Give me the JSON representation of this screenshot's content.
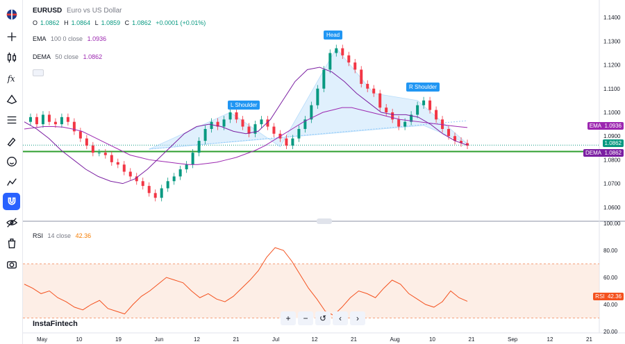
{
  "symbol": {
    "ticker": "EURUSD",
    "description": "Euro vs US Dollar",
    "ohlc": {
      "o_label": "O",
      "o": "1.0862",
      "h_label": "H",
      "h": "1.0864",
      "l_label": "L",
      "l": "1.0859",
      "c_label": "C",
      "c": "1.0862",
      "change": "+0.0001 (+0.01%)"
    }
  },
  "indicators": {
    "ema": {
      "name": "EMA",
      "params": "100 0 close",
      "value": "1.0936",
      "color": "#9c27b0"
    },
    "dema": {
      "name": "DEMA",
      "params": "50 close",
      "value": "1.0862",
      "color": "#7b1fa2"
    },
    "rsi": {
      "name": "RSI",
      "params": "14 close",
      "value": "42.36",
      "color": "#f57c00"
    }
  },
  "price_axis": {
    "ticks": [
      "1.1400",
      "1.1300",
      "1.1200",
      "1.1100",
      "1.1000",
      "1.0900",
      "1.0800",
      "1.0700",
      "1.0600"
    ],
    "tags": {
      "ema": {
        "label": "EMA",
        "value": "1.0936",
        "color": "#9c27b0"
      },
      "last": {
        "value": "1.0862",
        "color": "#089981"
      },
      "dema": {
        "label": "DEMA",
        "value": "1.0862",
        "color": "#7b1fa2"
      }
    }
  },
  "rsi_axis": {
    "ticks": [
      "100.00",
      "80.00",
      "60.00",
      "40.00",
      "20.00"
    ],
    "tag": {
      "label": "RSI",
      "value": "42.36",
      "color": "#f4511e"
    }
  },
  "time_axis": [
    "May",
    "10",
    "19",
    "Jun",
    "12",
    "21",
    "Jul",
    "12",
    "21",
    "Aug",
    "10",
    "21",
    "Sep",
    "12",
    "21"
  ],
  "pattern_labels": {
    "left_shoulder": "L Shoulder",
    "head": "Head",
    "right_shoulder": "R Shoulder"
  },
  "watermark": "InstaFintech",
  "nav": {
    "zoom_in": "+",
    "zoom_out": "−",
    "reset": "↺",
    "scroll_left": "‹",
    "scroll_right": "›"
  },
  "chart_data": {
    "type": "line",
    "title": "EURUSD",
    "subtitle": "Euro vs US Dollar",
    "ylim": [
      1.055,
      1.145
    ],
    "rsi_ylim": [
      20,
      100
    ],
    "horizontal_levels": [
      1.0835
    ],
    "series": [
      {
        "name": "EURUSD",
        "values": [
          1.096,
          1.098,
          1.095,
          1.099,
          1.096,
          1.095,
          1.098,
          1.096,
          1.092,
          1.089,
          1.086,
          1.083,
          1.083,
          1.082,
          1.079,
          1.078,
          1.075,
          1.073,
          1.071,
          1.069,
          1.066,
          1.064,
          1.068,
          1.071,
          1.073,
          1.076,
          1.078,
          1.083,
          1.088,
          1.093,
          1.096,
          1.094,
          1.097,
          1.1,
          1.097,
          1.094,
          1.091,
          1.095,
          1.097,
          1.094,
          1.091,
          1.089,
          1.086,
          1.089,
          1.093,
          1.097,
          1.103,
          1.11,
          1.118,
          1.125,
          1.127,
          1.124,
          1.121,
          1.118,
          1.112,
          1.11,
          1.108,
          1.102,
          1.1,
          1.097,
          1.094,
          1.096,
          1.099,
          1.103,
          1.105,
          1.101,
          1.097,
          1.093,
          1.09,
          1.088,
          1.087,
          1.086
        ]
      },
      {
        "name": "EMA",
        "values": [
          1.093,
          1.0935,
          1.094,
          1.094,
          1.0938,
          1.093,
          1.092,
          1.09,
          1.088,
          1.086,
          1.084,
          1.082,
          1.081,
          1.08,
          1.0795,
          1.079,
          1.0785,
          1.078,
          1.078,
          1.0785,
          1.079,
          1.08,
          1.081,
          1.0825,
          1.084,
          1.086,
          1.0885,
          1.091,
          1.0935,
          1.096,
          1.098,
          1.1,
          1.101,
          1.102,
          1.102,
          1.101,
          1.1,
          1.099,
          1.098,
          1.097,
          1.0965,
          1.096,
          1.0955,
          1.095,
          1.0945,
          1.094,
          1.0936
        ]
      },
      {
        "name": "DEMA",
        "values": [
          1.096,
          1.093,
          1.089,
          1.084,
          1.08,
          1.076,
          1.073,
          1.071,
          1.07,
          1.072,
          1.076,
          1.081,
          1.086,
          1.091,
          1.094,
          1.095,
          1.094,
          1.092,
          1.091,
          1.092,
          1.097,
          1.105,
          1.113,
          1.118,
          1.119,
          1.117,
          1.113,
          1.108,
          1.104,
          1.1,
          1.099,
          1.099,
          1.098,
          1.095,
          1.091,
          1.088,
          1.0862
        ]
      },
      {
        "name": "RSI",
        "values": [
          55,
          52,
          48,
          50,
          45,
          42,
          38,
          36,
          40,
          43,
          37,
          35,
          33,
          40,
          46,
          50,
          55,
          60,
          58,
          56,
          50,
          45,
          48,
          44,
          42,
          46,
          52,
          58,
          65,
          75,
          82,
          80,
          72,
          62,
          52,
          44,
          35,
          32,
          38,
          45,
          50,
          48,
          45,
          52,
          58,
          55,
          48,
          44,
          40,
          38,
          42,
          50,
          45,
          42.36
        ]
      }
    ]
  }
}
